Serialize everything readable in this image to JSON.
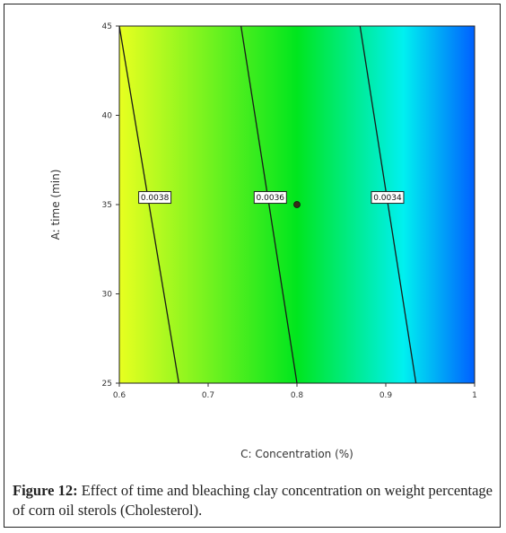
{
  "caption": {
    "label": "Figure 12:",
    "text": "Effect of time and bleaching clay concentration on weight percentage of corn oil sterols (Cholesterol)."
  },
  "chart_data": {
    "type": "heatmap",
    "subtype": "contour",
    "xlabel": "C: Concentration (%)",
    "ylabel": "A: time (min)",
    "xlim": [
      0.6,
      1
    ],
    "ylim": [
      25,
      45
    ],
    "x_ticks": [
      "0.6",
      "0.7",
      "0.8",
      "0.9",
      "1"
    ],
    "y_ticks": [
      "25",
      "30",
      "35",
      "40",
      "45"
    ],
    "grid": false,
    "colormap": [
      "#e8ff20",
      "#00e61e",
      "#00f0f0",
      "#0060ff"
    ],
    "contours": [
      {
        "label": "0.0038",
        "top": [
          0.6,
          45
        ],
        "bottom": [
          0.667,
          25
        ],
        "label_at": [
          0.64,
          35.4
        ]
      },
      {
        "label": "0.0036",
        "top": [
          0.737,
          45
        ],
        "bottom": [
          0.8,
          25
        ],
        "label_at": [
          0.77,
          35.4
        ]
      },
      {
        "label": "0.0034",
        "top": [
          0.871,
          45
        ],
        "bottom": [
          0.934,
          25
        ],
        "label_at": [
          0.902,
          35.4
        ]
      }
    ],
    "points": [
      {
        "x": 0.8,
        "y": 35
      }
    ]
  }
}
